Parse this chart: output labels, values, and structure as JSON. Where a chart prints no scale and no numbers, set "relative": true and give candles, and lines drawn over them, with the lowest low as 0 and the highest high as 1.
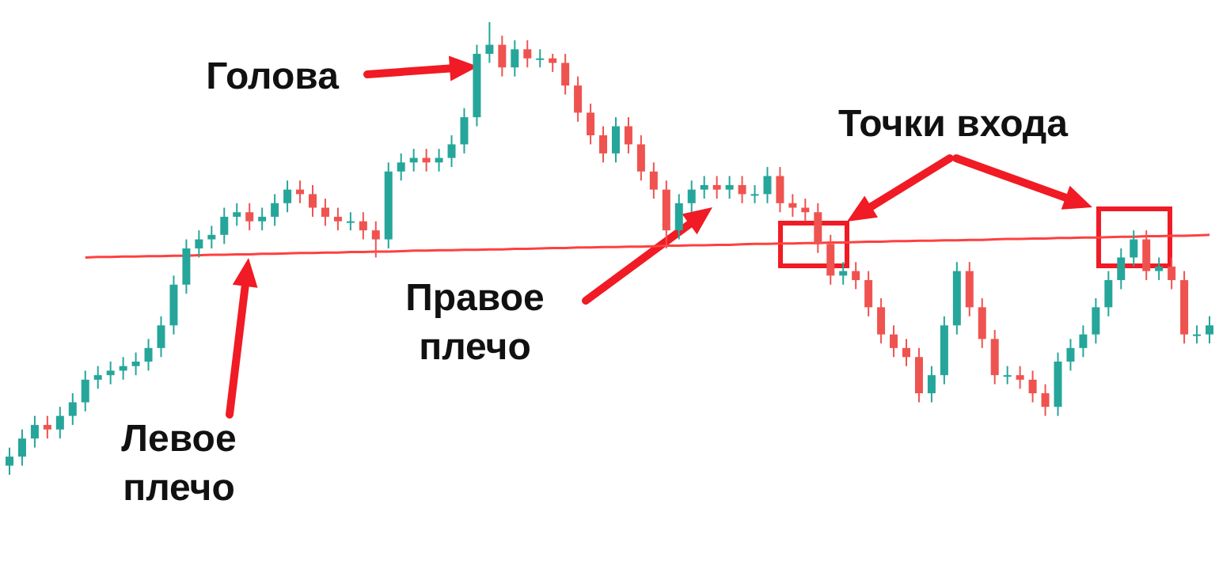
{
  "chart_data": {
    "type": "candlestick",
    "relative": true,
    "categories": [
      null,
      null,
      null,
      null,
      null,
      null,
      null,
      null,
      null,
      null,
      null,
      null,
      null,
      null,
      null,
      null,
      null,
      null,
      null,
      null,
      null,
      null,
      null,
      null,
      null,
      null,
      null,
      null,
      null,
      null,
      null,
      null,
      null,
      null,
      null,
      null,
      null,
      null,
      null,
      null,
      null,
      null,
      null,
      null,
      null,
      null,
      null,
      null,
      null,
      null,
      null,
      null,
      null,
      null,
      null,
      null,
      null,
      null,
      null,
      null,
      null,
      null,
      null,
      null,
      null,
      null,
      null,
      null,
      null,
      null,
      null,
      null,
      null,
      null,
      null,
      null,
      null,
      null,
      null,
      null,
      null,
      null,
      null,
      null,
      null,
      null,
      null,
      null,
      null,
      null,
      null,
      null,
      null,
      null,
      null,
      null
    ],
    "colors": [
      "#26a69a",
      "#26a69a",
      "#26a69a",
      "#ef5350",
      "#26a69a",
      "#26a69a",
      "#26a69a",
      "#26a69a",
      "#26a69a",
      "#26a69a",
      "#26a69a",
      "#26a69a",
      "#26a69a",
      "#26a69a",
      "#26a69a",
      "#26a69a",
      "#26a69a",
      "#26a69a",
      "#26a69a",
      "#ef5350",
      "#26a69a",
      "#26a69a",
      "#26a69a",
      "#ef5350",
      "#ef5350",
      "#ef5350",
      "#ef5350",
      "#26a69a",
      "#ef5350",
      "#ef5350",
      "#26a69a",
      "#26a69a",
      "#26a69a",
      "#ef5350",
      "#26a69a",
      "#26a69a",
      "#26a69a",
      "#26a69a",
      "#26a69a",
      "#ef5350",
      "#26a69a",
      "#ef5350",
      "#26a69a",
      "#ef5350",
      "#ef5350",
      "#ef5350",
      "#ef5350",
      "#ef5350",
      "#26a69a",
      "#ef5350",
      "#ef5350",
      "#ef5350",
      "#ef5350",
      "#26a69a",
      "#26a69a",
      "#26a69a",
      "#ef5350",
      "#26a69a",
      "#ef5350",
      "#26a69a",
      "#26a69a",
      "#ef5350",
      "#ef5350",
      "#ef5350",
      "#ef5350",
      "#ef5350",
      "#26a69a",
      "#ef5350",
      "#ef5350",
      "#ef5350",
      "#ef5350",
      "#ef5350",
      "#ef5350",
      "#26a69a",
      "#26a69a",
      "#26a69a",
      "#ef5350",
      "#ef5350",
      "#ef5350",
      "#26a69a",
      "#ef5350",
      "#ef5350",
      "#ef5350",
      "#26a69a",
      "#26a69a",
      "#26a69a",
      "#26a69a",
      "#26a69a",
      "#26a69a",
      "#26a69a",
      "#ef5350",
      "#26a69a",
      "#ef5350",
      "#ef5350",
      "#26a69a",
      "#26a69a"
    ],
    "ohlc": [
      [
        0.02,
        0.06,
        0,
        0.04
      ],
      [
        0.04,
        0.1,
        0.02,
        0.08
      ],
      [
        0.08,
        0.13,
        0.06,
        0.11
      ],
      [
        0.11,
        0.13,
        0.08,
        0.1
      ],
      [
        0.1,
        0.15,
        0.08,
        0.13
      ],
      [
        0.13,
        0.18,
        0.11,
        0.16
      ],
      [
        0.16,
        0.23,
        0.14,
        0.21
      ],
      [
        0.21,
        0.24,
        0.19,
        0.22
      ],
      [
        0.22,
        0.25,
        0.2,
        0.23
      ],
      [
        0.23,
        0.26,
        0.21,
        0.24
      ],
      [
        0.24,
        0.27,
        0.22,
        0.25
      ],
      [
        0.25,
        0.3,
        0.23,
        0.28
      ],
      [
        0.28,
        0.35,
        0.26,
        0.33
      ],
      [
        0.33,
        0.44,
        0.31,
        0.42
      ],
      [
        0.42,
        0.52,
        0.4,
        0.5
      ],
      [
        0.5,
        0.54,
        0.48,
        0.52
      ],
      [
        0.52,
        0.55,
        0.5,
        0.53
      ],
      [
        0.53,
        0.59,
        0.51,
        0.57
      ],
      [
        0.57,
        0.6,
        0.55,
        0.58
      ],
      [
        0.58,
        0.6,
        0.54,
        0.56
      ],
      [
        0.56,
        0.59,
        0.54,
        0.57
      ],
      [
        0.57,
        0.62,
        0.55,
        0.6
      ],
      [
        0.6,
        0.65,
        0.58,
        0.63
      ],
      [
        0.63,
        0.65,
        0.6,
        0.62
      ],
      [
        0.62,
        0.64,
        0.57,
        0.59
      ],
      [
        0.59,
        0.61,
        0.55,
        0.57
      ],
      [
        0.57,
        0.59,
        0.54,
        0.56
      ],
      [
        0.56,
        0.58,
        0.54,
        0.56
      ],
      [
        0.56,
        0.58,
        0.52,
        0.54
      ],
      [
        0.54,
        0.56,
        0.48,
        0.52
      ],
      [
        0.52,
        0.69,
        0.5,
        0.67
      ],
      [
        0.67,
        0.71,
        0.65,
        0.69
      ],
      [
        0.69,
        0.72,
        0.67,
        0.7
      ],
      [
        0.7,
        0.72,
        0.67,
        0.69
      ],
      [
        0.69,
        0.72,
        0.67,
        0.7
      ],
      [
        0.7,
        0.75,
        0.68,
        0.73
      ],
      [
        0.73,
        0.81,
        0.71,
        0.79
      ],
      [
        0.79,
        0.95,
        0.77,
        0.93
      ],
      [
        0.93,
        1,
        0.91,
        0.95
      ],
      [
        0.95,
        0.97,
        0.88,
        0.9
      ],
      [
        0.9,
        0.96,
        0.88,
        0.94
      ],
      [
        0.94,
        0.96,
        0.9,
        0.92
      ],
      [
        0.92,
        0.94,
        0.9,
        0.92
      ],
      [
        0.92,
        0.93,
        0.89,
        0.91
      ],
      [
        0.91,
        0.93,
        0.84,
        0.86
      ],
      [
        0.86,
        0.88,
        0.78,
        0.8
      ],
      [
        0.8,
        0.82,
        0.73,
        0.75
      ],
      [
        0.75,
        0.77,
        0.69,
        0.71
      ],
      [
        0.71,
        0.79,
        0.69,
        0.77
      ],
      [
        0.77,
        0.79,
        0.71,
        0.73
      ],
      [
        0.73,
        0.75,
        0.65,
        0.67
      ],
      [
        0.67,
        0.69,
        0.61,
        0.63
      ],
      [
        0.63,
        0.65,
        0.5,
        0.54
      ],
      [
        0.54,
        0.62,
        0.52,
        0.6
      ],
      [
        0.6,
        0.65,
        0.58,
        0.63
      ],
      [
        0.63,
        0.66,
        0.61,
        0.64
      ],
      [
        0.64,
        0.66,
        0.61,
        0.63
      ],
      [
        0.63,
        0.66,
        0.61,
        0.64
      ],
      [
        0.64,
        0.66,
        0.6,
        0.62
      ],
      [
        0.62,
        0.64,
        0.6,
        0.62
      ],
      [
        0.62,
        0.68,
        0.6,
        0.66
      ],
      [
        0.66,
        0.68,
        0.58,
        0.6
      ],
      [
        0.6,
        0.62,
        0.57,
        0.59
      ],
      [
        0.59,
        0.61,
        0.56,
        0.58
      ],
      [
        0.58,
        0.6,
        0.49,
        0.51
      ],
      [
        0.51,
        0.53,
        0.42,
        0.44
      ],
      [
        0.44,
        0.47,
        0.42,
        0.45
      ],
      [
        0.45,
        0.47,
        0.41,
        0.43
      ],
      [
        0.43,
        0.45,
        0.35,
        0.37
      ],
      [
        0.37,
        0.39,
        0.29,
        0.31
      ],
      [
        0.31,
        0.33,
        0.26,
        0.28
      ],
      [
        0.28,
        0.3,
        0.24,
        0.26
      ],
      [
        0.26,
        0.28,
        0.16,
        0.18
      ],
      [
        0.18,
        0.24,
        0.16,
        0.22
      ],
      [
        0.22,
        0.35,
        0.2,
        0.33
      ],
      [
        0.33,
        0.47,
        0.31,
        0.45
      ],
      [
        0.45,
        0.47,
        0.35,
        0.37
      ],
      [
        0.37,
        0.39,
        0.28,
        0.3
      ],
      [
        0.3,
        0.32,
        0.2,
        0.22
      ],
      [
        0.22,
        0.24,
        0.2,
        0.22
      ],
      [
        0.22,
        0.24,
        0.19,
        0.21
      ],
      [
        0.21,
        0.23,
        0.16,
        0.18
      ],
      [
        0.18,
        0.2,
        0.13,
        0.15
      ],
      [
        0.15,
        0.27,
        0.13,
        0.25
      ],
      [
        0.25,
        0.3,
        0.23,
        0.28
      ],
      [
        0.28,
        0.33,
        0.26,
        0.31
      ],
      [
        0.31,
        0.39,
        0.29,
        0.37
      ],
      [
        0.37,
        0.45,
        0.35,
        0.43
      ],
      [
        0.43,
        0.5,
        0.41,
        0.48
      ],
      [
        0.48,
        0.54,
        0.46,
        0.52
      ],
      [
        0.52,
        0.54,
        0.43,
        0.45
      ],
      [
        0.45,
        0.48,
        0.43,
        0.46
      ],
      [
        0.46,
        0.48,
        0.41,
        0.43
      ],
      [
        0.43,
        0.45,
        0.29,
        0.31
      ],
      [
        0.31,
        0.33,
        0.29,
        0.31
      ],
      [
        0.31,
        0.35,
        0.29,
        0.33
      ]
    ],
    "series": [
      {
        "type": "line",
        "color": "#ff4040",
        "values": [
          null,
          null,
          null,
          null,
          null,
          null,
          0.48,
          0.481,
          0.481,
          0.482,
          0.482,
          0.483,
          0.483,
          0.484,
          0.484,
          0.485,
          0.486,
          0.486,
          0.487,
          0.487,
          0.488,
          0.488,
          0.489,
          0.49,
          0.49,
          0.491,
          0.491,
          0.492,
          0.492,
          0.493,
          0.493,
          0.494,
          0.495,
          0.495,
          0.496,
          0.496,
          0.497,
          0.497,
          0.498,
          0.498,
          0.499,
          0.499,
          0.5,
          0.501,
          0.501,
          0.502,
          0.502,
          0.503,
          0.503,
          0.504,
          0.504,
          0.505,
          0.506,
          0.506,
          0.507,
          0.507,
          0.508,
          0.508,
          0.509,
          0.51,
          0.51,
          0.511,
          0.511,
          0.512,
          0.512,
          0.513,
          0.513,
          0.514,
          0.515,
          0.515,
          0.516,
          0.516,
          0.517,
          0.517,
          0.518,
          0.518,
          0.519,
          0.519,
          0.52,
          0.521,
          0.521,
          0.522,
          0.522,
          0.523,
          0.523,
          0.524,
          0.524,
          0.525,
          0.526,
          0.526,
          0.527,
          0.527,
          0.528,
          0.528,
          0.529,
          0.53
        ]
      }
    ],
    "annotations": [
      "Голова",
      "Левое плечо",
      "Правое плечо",
      "Точки входа"
    ]
  }
}
